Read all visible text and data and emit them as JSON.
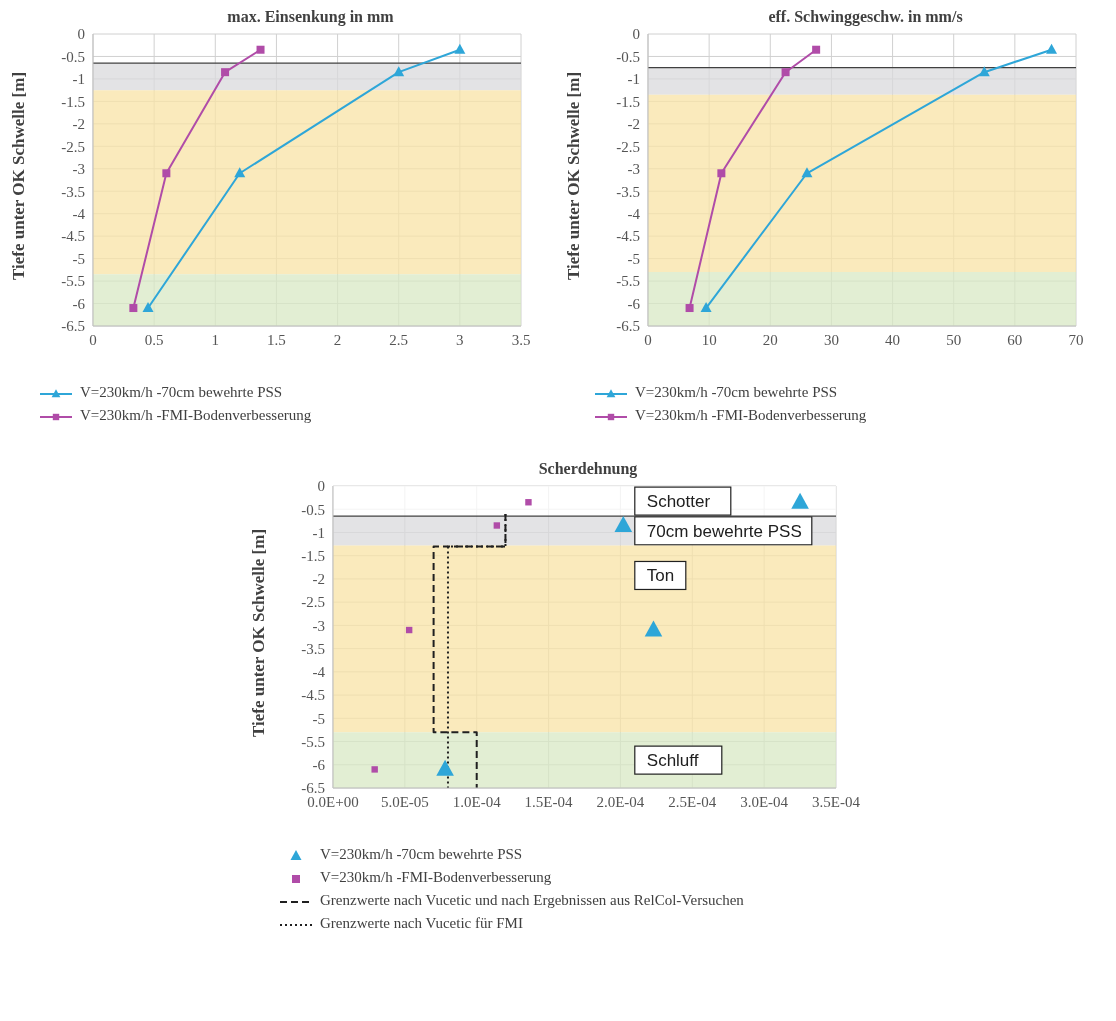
{
  "chart_data": [
    {
      "type": "line",
      "title": "max. Einsenkung in mm",
      "ylabel": "Tiefe unter OK Schwelle [m]",
      "xlim": [
        0,
        3.5
      ],
      "xticks": [
        0,
        0.5,
        1,
        1.5,
        2,
        2.5,
        3,
        3.5
      ],
      "ylim": [
        -6.5,
        0
      ],
      "yticks": [
        0,
        -0.5,
        -1,
        -1.5,
        -2,
        -2.5,
        -3,
        -3.5,
        -4,
        -4.5,
        -5,
        -5.5,
        -6,
        -6.5
      ],
      "grid": true,
      "legend": "bottom",
      "bands": [
        {
          "axis": "y",
          "from": -0.65,
          "to": -1.25,
          "color": "#d9dadc"
        },
        {
          "axis": "y",
          "from": -1.25,
          "to": -5.35,
          "color": "#f8e3a6"
        },
        {
          "axis": "y",
          "from": -5.35,
          "to": -6.5,
          "color": "#d8e8c4"
        }
      ],
      "ref_lines": [
        {
          "axis": "y",
          "value": -0.65,
          "color": "#404040"
        }
      ],
      "series": [
        {
          "name": "V=230km/h -70cm bewehrte PSS",
          "color": "#2ea6d8",
          "marker": "triangle",
          "x": [
            3.0,
            2.5,
            1.2,
            0.45
          ],
          "values": [
            -0.35,
            -0.85,
            -3.1,
            -6.1
          ]
        },
        {
          "name": "V=230km/h -FMI-Bodenverbesserung",
          "color": "#b04ca8",
          "marker": "square",
          "x": [
            1.37,
            1.08,
            0.6,
            0.33
          ],
          "values": [
            -0.35,
            -0.85,
            -3.1,
            -6.1
          ]
        }
      ]
    },
    {
      "type": "line",
      "title": "eff. Schwinggeschw. in mm/s",
      "ylabel": "Tiefe unter OK Schwelle [m]",
      "xlim": [
        0,
        70
      ],
      "xticks": [
        0,
        10,
        20,
        30,
        40,
        50,
        60,
        70
      ],
      "ylim": [
        -6.5,
        0
      ],
      "yticks": [
        0,
        -0.5,
        -1,
        -1.5,
        -2,
        -2.5,
        -3,
        -3.5,
        -4,
        -4.5,
        -5,
        -5.5,
        -6,
        -6.5
      ],
      "grid": true,
      "legend": "bottom",
      "bands": [
        {
          "axis": "y",
          "from": -0.75,
          "to": -1.35,
          "color": "#d9dadc"
        },
        {
          "axis": "y",
          "from": -1.35,
          "to": -5.3,
          "color": "#f8e3a6"
        },
        {
          "axis": "y",
          "from": -5.3,
          "to": -6.5,
          "color": "#d8e8c4"
        }
      ],
      "ref_lines": [
        {
          "axis": "y",
          "value": -0.75,
          "color": "#404040"
        }
      ],
      "series": [
        {
          "name": "V=230km/h -70cm bewehrte PSS",
          "color": "#2ea6d8",
          "marker": "triangle",
          "x": [
            66,
            55,
            26,
            9.5
          ],
          "values": [
            -0.35,
            -0.85,
            -3.1,
            -6.1
          ]
        },
        {
          "name": "V=230km/h -FMI-Bodenverbesserung",
          "color": "#b04ca8",
          "marker": "square",
          "x": [
            27.5,
            22.5,
            12,
            6.8
          ],
          "values": [
            -0.35,
            -0.85,
            -3.1,
            -6.1
          ]
        }
      ]
    },
    {
      "type": "scatter",
      "title": "Scherdehnung",
      "ylabel": "Tiefe unter OK Schwelle [m]",
      "xlim": [
        0,
        0.00035
      ],
      "xticks": [
        {
          "value": 0,
          "label": "0.0E+00"
        },
        {
          "value": 5e-05,
          "label": "5.0E-05"
        },
        {
          "value": 0.0001,
          "label": "1.0E-04"
        },
        {
          "value": 0.00015,
          "label": "1.5E-04"
        },
        {
          "value": 0.0002,
          "label": "2.0E-04"
        },
        {
          "value": 0.00025,
          "label": "2.5E-04"
        },
        {
          "value": 0.0003,
          "label": "3.0E-04"
        },
        {
          "value": 0.00035,
          "label": "3.5E-04"
        }
      ],
      "ylim": [
        -6.5,
        0
      ],
      "yticks": [
        0,
        -0.5,
        -1,
        -1.5,
        -2,
        -2.5,
        -3,
        -3.5,
        -4,
        -4.5,
        -5,
        -5.5,
        -6,
        -6.5
      ],
      "grid": true,
      "legend": "bottom",
      "bands": [
        {
          "axis": "y",
          "from": 0,
          "to": -0.65,
          "color": "#ffffff",
          "label": "Schotter"
        },
        {
          "axis": "y",
          "from": -0.65,
          "to": -1.28,
          "color": "#d9dadc",
          "label": "70cm bewehrte PSS"
        },
        {
          "axis": "y",
          "from": -1.28,
          "to": -5.3,
          "color": "#f8e3a6",
          "label": "Ton"
        },
        {
          "axis": "y",
          "from": -5.3,
          "to": -6.5,
          "color": "#d8e8c4",
          "label": "Schluff"
        }
      ],
      "ref_lines": [
        {
          "axis": "y",
          "value": -0.65,
          "color": "#404040"
        }
      ],
      "series": [
        {
          "name": "V=230km/h -70cm bewehrte PSS",
          "color": "#2ea6d8",
          "marker": "triangle",
          "x": [
            0.000325,
            0.000202,
            0.000223,
            7.8e-05
          ],
          "values": [
            -0.35,
            -0.85,
            -3.1,
            -6.1
          ]
        },
        {
          "name": "V=230km/h -FMI-Bodenverbesserung",
          "color": "#b04ca8",
          "marker": "square",
          "x": [
            0.000136,
            0.000114,
            5.3e-05,
            2.9e-05
          ],
          "values": [
            -0.35,
            -0.85,
            -3.1,
            -6.1
          ]
        },
        {
          "type": "line",
          "name": "Grenzwerte nach Vucetic und nach Ergebnissen aus RelCol-Versuchen",
          "color": "#202020",
          "marker": "none",
          "line_style": "dashed",
          "x": [
            0.00012,
            0.00012,
            7e-05,
            7e-05,
            0.0001,
            0.0001
          ],
          "values": [
            -0.6,
            -1.3,
            -1.3,
            -5.3,
            -5.3,
            -6.5
          ]
        },
        {
          "type": "line",
          "name": "Grenzwerte nach Vucetic für FMI",
          "color": "#202020",
          "marker": "none",
          "line_style": "dotted",
          "x": [
            0.00012,
            0.00012,
            8e-05,
            8e-05
          ],
          "values": [
            -0.6,
            -1.3,
            -1.3,
            -6.5
          ]
        }
      ]
    }
  ]
}
